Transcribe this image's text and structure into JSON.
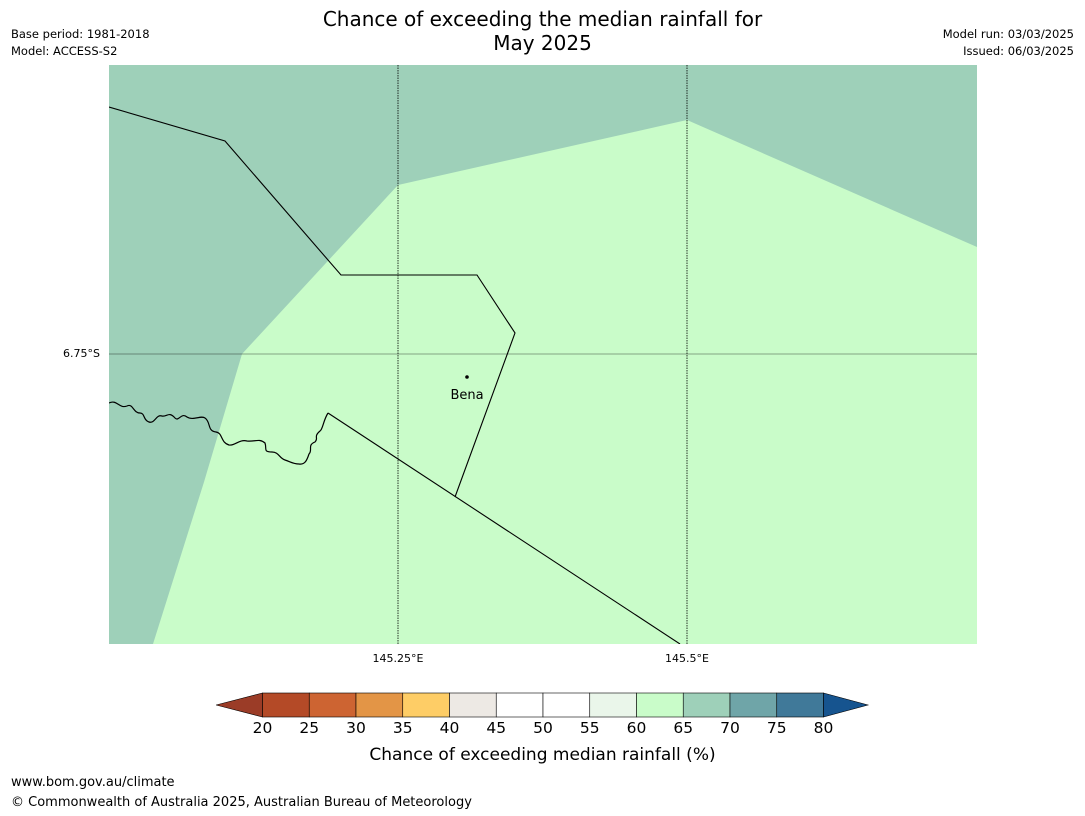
{
  "header": {
    "title_line1": "Chance of exceeding the median rainfall for",
    "title_line2": "May 2025",
    "base_period": "Base period: 1981-2018",
    "model": "Model: ACCESS-S2",
    "model_run": "Model run: 03/03/2025",
    "issued": "Issued: 06/03/2025"
  },
  "map": {
    "lat_labels": [
      "6.75°S"
    ],
    "lon_labels": [
      "145.25°E",
      "145.5°E"
    ],
    "places": [
      {
        "name": "Bena"
      }
    ],
    "fill_colors": {
      "band_60_65": "#c9fcc9",
      "band_65_70": "#9ed0b9"
    }
  },
  "legend": {
    "ticks": [
      "20",
      "25",
      "30",
      "35",
      "40",
      "45",
      "50",
      "55",
      "60",
      "65",
      "70",
      "75",
      "80"
    ],
    "colors": [
      "#9b3c27",
      "#b44a27",
      "#cd6432",
      "#e39546",
      "#fecd66",
      "#ede9e4",
      "#ffffff",
      "#ffffff",
      "#eaf6ea",
      "#c9fcc9",
      "#9ed0b9",
      "#6fa5a8",
      "#407999",
      "#16548f"
    ],
    "label": "Chance of exceeding median rainfall (%)"
  },
  "footer": {
    "url": "www.bom.gov.au/climate",
    "copyright": "© Commonwealth of Australia 2025, Australian Bureau of Meteorology"
  }
}
